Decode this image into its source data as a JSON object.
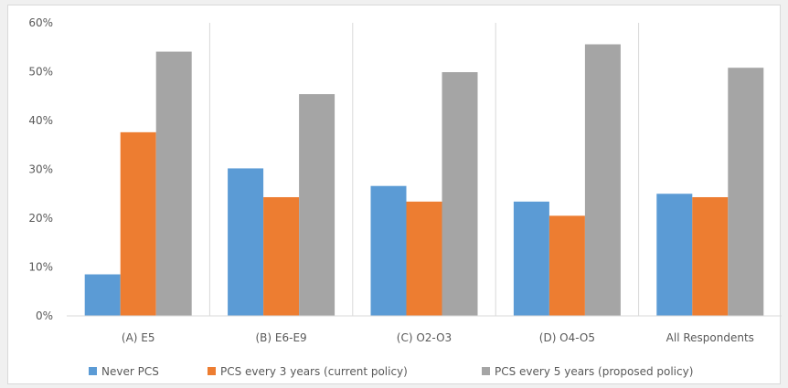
{
  "chart_data": {
    "type": "bar",
    "categories": [
      "(A) E5",
      "(B) E6-E9",
      "(C) O2-O3",
      "(D) O4-O5",
      "All Respondents"
    ],
    "series": [
      {
        "name": "Never PCS",
        "color": "#5b9bd5",
        "values": [
          8.5,
          30.2,
          26.6,
          23.4,
          25.0
        ]
      },
      {
        "name": "PCS every 3 years (current policy)",
        "color": "#ed7d31",
        "values": [
          37.6,
          24.3,
          23.4,
          20.5,
          24.3
        ]
      },
      {
        "name": "PCS every 5 years (proposed policy)",
        "color": "#a5a5a5",
        "values": [
          54.1,
          45.4,
          49.9,
          55.6,
          50.8
        ]
      }
    ],
    "ylim": [
      0,
      60
    ],
    "yticks": [
      "0%",
      "10%",
      "20%",
      "30%",
      "40%",
      "50%",
      "60%"
    ],
    "title": "",
    "xlabel": "",
    "ylabel": "",
    "grid": "category separators",
    "legend": "bottom"
  }
}
